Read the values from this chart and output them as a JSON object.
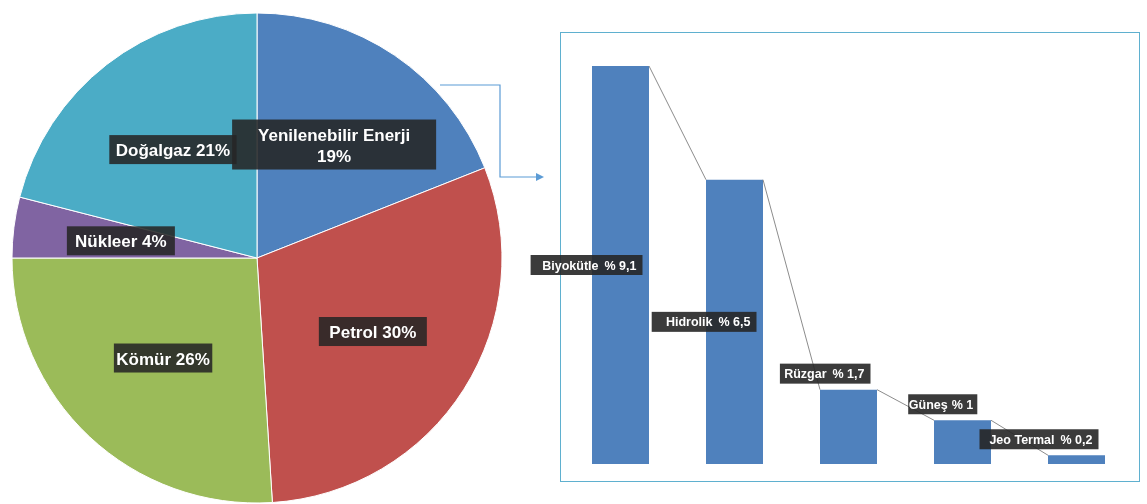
{
  "chart_data": [
    {
      "type": "pie",
      "categories": [
        "Yenilenebilir Enerji",
        "Petrol",
        "Kömür",
        "Nükleer",
        "Doğalgaz"
      ],
      "values": [
        19,
        30,
        26,
        4,
        21
      ],
      "colors": [
        "#4f81bd",
        "#c0504d",
        "#9bbb59",
        "#8064a2",
        "#4bacc6"
      ],
      "value_labels": [
        "19%",
        "30%",
        "26%",
        "4%",
        "21%"
      ]
    },
    {
      "type": "bar",
      "categories": [
        "Biyokütle",
        "Hidrolik",
        "Rüzgar",
        "Güneş",
        "Jeo Termal"
      ],
      "series": [
        {
          "type": "bar",
          "color": "#4f81bd",
          "values": [
            9.1,
            6.5,
            1.7,
            1,
            0.2
          ],
          "value_labels": [
            "% 9,1",
            "% 6,5",
            "% 1,7",
            "% 1",
            "% 0,2"
          ]
        }
      ]
    }
  ]
}
